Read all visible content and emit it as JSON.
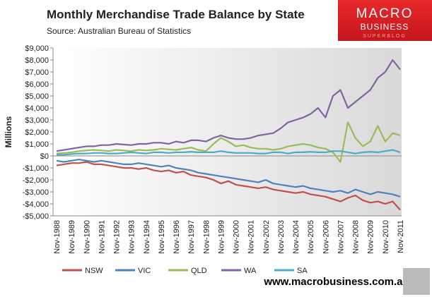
{
  "chart_data": {
    "type": "line",
    "title": "Monthly Merchandise Trade Balance by State",
    "subtitle": "Source:  Australian Bureau of Statistics",
    "y_label": "Millions",
    "categories": [
      "Nov-1988",
      null,
      "Nov-1989",
      null,
      "Nov-1990",
      null,
      "Nov-1991",
      null,
      "Nov-1992",
      null,
      "Nov-1993",
      null,
      "Nov-1994",
      null,
      "Nov-1995",
      null,
      "Nov-1996",
      null,
      "Nov-1997",
      null,
      "Nov-1998",
      null,
      "Nov-1999",
      null,
      "Nov-2000",
      null,
      "Nov-2001",
      null,
      "Nov-2002",
      null,
      "Nov-2003",
      null,
      "Nov-2004",
      null,
      "Nov-2005",
      null,
      "Nov-2006",
      null,
      "Nov-2007",
      null,
      "Nov-2008",
      null,
      "Nov-2009",
      null,
      "Nov-2010",
      null,
      "Nov-2011"
    ],
    "series": [
      {
        "name": "NSW",
        "color": "#c0504d",
        "values": [
          -800,
          -700,
          -600,
          -600,
          -500,
          -700,
          -700,
          -800,
          -900,
          -1000,
          -1000,
          -1100,
          -1000,
          -1200,
          -1300,
          -1200,
          -1400,
          -1300,
          -1600,
          -1700,
          -1800,
          -2000,
          -2300,
          -2100,
          -2400,
          -2500,
          -2600,
          -2700,
          -2600,
          -2800,
          -2900,
          -3000,
          -3100,
          -3000,
          -3200,
          -3300,
          -3400,
          -3600,
          -3800,
          -3500,
          -3300,
          -3700,
          -3900,
          -3800,
          -4000,
          -3800,
          -4500
        ]
      },
      {
        "name": "VIC",
        "color": "#4f81bd",
        "values": [
          -400,
          -500,
          -400,
          -300,
          -400,
          -500,
          -400,
          -500,
          -600,
          -700,
          -700,
          -600,
          -700,
          -800,
          -900,
          -800,
          -1000,
          -1100,
          -1200,
          -1400,
          -1500,
          -1600,
          -1700,
          -1800,
          -1900,
          -2000,
          -2100,
          -2200,
          -2000,
          -2300,
          -2400,
          -2500,
          -2600,
          -2500,
          -2700,
          -2800,
          -2900,
          -3000,
          -2900,
          -3100,
          -2800,
          -3000,
          -3200,
          -3000,
          -3100,
          -3200,
          -3400
        ]
      },
      {
        "name": "QLD",
        "color": "#9bbb59",
        "values": [
          200,
          250,
          300,
          400,
          450,
          500,
          450,
          400,
          500,
          450,
          400,
          500,
          450,
          500,
          600,
          550,
          500,
          600,
          700,
          500,
          400,
          1000,
          1500,
          1200,
          800,
          900,
          700,
          600,
          600,
          500,
          600,
          800,
          900,
          1000,
          900,
          700,
          600,
          300,
          -500,
          2800,
          1500,
          800,
          1200,
          2500,
          1200,
          1900,
          1700
        ]
      },
      {
        "name": "WA",
        "color": "#8064a2",
        "values": [
          400,
          500,
          600,
          700,
          800,
          800,
          900,
          900,
          1000,
          950,
          900,
          1000,
          1000,
          1100,
          1100,
          1000,
          1200,
          1100,
          1300,
          1300,
          1200,
          1500,
          1700,
          1500,
          1400,
          1400,
          1500,
          1700,
          1800,
          1900,
          2300,
          2800,
          3000,
          3200,
          3500,
          4000,
          3200,
          5000,
          5500,
          4000,
          4500,
          5000,
          5500,
          6500,
          7000,
          8000,
          7200
        ]
      },
      {
        "name": "SA",
        "color": "#4bacc6",
        "values": [
          100,
          100,
          150,
          200,
          200,
          250,
          250,
          200,
          200,
          250,
          300,
          250,
          200,
          300,
          300,
          250,
          300,
          300,
          350,
          300,
          300,
          300,
          400,
          300,
          250,
          250,
          250,
          200,
          200,
          300,
          300,
          200,
          300,
          300,
          350,
          300,
          300,
          400,
          400,
          300,
          200,
          300,
          350,
          300,
          400,
          500,
          300
        ]
      }
    ],
    "ylim": [
      -5000,
      9000
    ],
    "yticks": [
      {
        "value": -5000,
        "label": "-$5,000"
      },
      {
        "value": -4000,
        "label": "-$4,000"
      },
      {
        "value": -3000,
        "label": "-$3,000"
      },
      {
        "value": -2000,
        "label": "-$2,000"
      },
      {
        "value": -1000,
        "label": "-$1,000"
      },
      {
        "value": 0,
        "label": "$0"
      },
      {
        "value": 1000,
        "label": "$1,000"
      },
      {
        "value": 2000,
        "label": "$2,000"
      },
      {
        "value": 3000,
        "label": "$3,000"
      },
      {
        "value": 4000,
        "label": "$4,000"
      },
      {
        "value": 5000,
        "label": "$5,000"
      },
      {
        "value": 6000,
        "label": "$6,000"
      },
      {
        "value": 7000,
        "label": "$7,000"
      },
      {
        "value": 8000,
        "label": "$8,000"
      },
      {
        "value": 9000,
        "label": "$9,000"
      }
    ],
    "legend": "bottom"
  },
  "logo": {
    "line1": "MACRO",
    "line2": "BUSINESS",
    "line3": "SUPERBLOG"
  },
  "website": "www.macrobusiness.com.au"
}
